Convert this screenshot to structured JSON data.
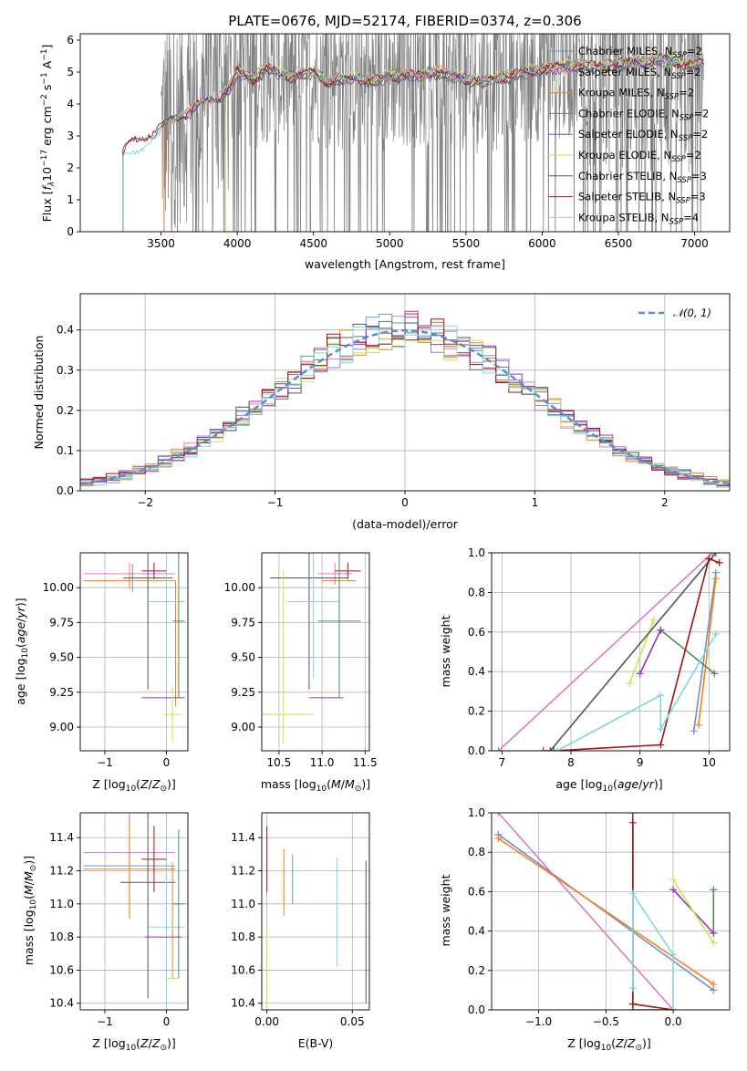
{
  "colors": {
    "chab_miles": "#6a8fd6",
    "salp_miles": "#e377c2",
    "krou_miles": "#ff7f0e",
    "chab_elodie": "#4f8a5a",
    "salp_elodie": "#9a32c4",
    "krou_elodie": "#c8e64a",
    "chab_stelib": "#555555",
    "salp_stelib": "#a50f15",
    "krou_stelib": "#7fd6e0",
    "data": "#808080",
    "gauss": "#5b8bd8"
  },
  "chart_data": [
    {
      "id": "spectrum",
      "type": "line",
      "title": "PLATE=0676, MJD=52174, FIBERID=0374, z=0.306",
      "xlabel": "wavelength [Angstrom, rest frame]",
      "ylabel": "Flux [$f_\\lambda 10^{-17}$ erg cm$^{-2}$ s$^{-1}$ A$^{-1}$]",
      "xlim": [
        2970,
        7230
      ],
      "ylim": [
        0,
        6.2
      ],
      "xticks": [
        3500,
        4000,
        4500,
        5000,
        5500,
        6000,
        6500,
        7000
      ],
      "yticks": [
        0,
        1,
        2,
        3,
        4,
        5,
        6
      ],
      "grid": false,
      "legend_position": "top-right",
      "legend": [
        {
          "key": "chab_miles",
          "name": "Chabrier MILES, N",
          "sub": "SSP",
          "tail": "=2"
        },
        {
          "key": "salp_miles",
          "name": "Salpeter MILES, N",
          "sub": "SSP",
          "tail": "=2"
        },
        {
          "key": "krou_miles",
          "name": "Kroupa MILES, N",
          "sub": "SSP",
          "tail": "=2"
        },
        {
          "key": "chab_elodie",
          "name": "Chabrier ELODIE, N",
          "sub": "SSP",
          "tail": "=2"
        },
        {
          "key": "salp_elodie",
          "name": "Salpeter ELODIE, N",
          "sub": "SSP",
          "tail": "=2"
        },
        {
          "key": "krou_elodie",
          "name": "Kroupa ELODIE, N",
          "sub": "SSP",
          "tail": "=2"
        },
        {
          "key": "chab_stelib",
          "name": "Chabrier STELIB, N",
          "sub": "SSP",
          "tail": "=3"
        },
        {
          "key": "salp_stelib",
          "name": "Salpeter STELIB, N",
          "sub": "SSP",
          "tail": "=3"
        },
        {
          "key": "krou_stelib",
          "name": "Kroupa STELIB, N",
          "sub": "SSP",
          "tail": "=4"
        }
      ],
      "model_envelope": {
        "x": [
          3250,
          3300,
          3400,
          3500,
          3600,
          3700,
          3800,
          3900,
          3950,
          4000,
          4100,
          4200,
          4300,
          4400,
          4500,
          4600,
          4700,
          4800,
          4900,
          5000,
          5100,
          5200,
          5300,
          5400,
          5500,
          5600,
          5700,
          5800,
          5900,
          6000,
          6200,
          6400,
          6600,
          6800,
          7000,
          7050
        ],
        "y": [
          2.6,
          2.8,
          3.0,
          3.3,
          3.6,
          3.8,
          4.1,
          4.3,
          4.5,
          5.0,
          4.8,
          5.1,
          4.9,
          4.9,
          5.0,
          4.7,
          4.8,
          4.8,
          4.7,
          4.9,
          4.9,
          4.9,
          5.0,
          4.9,
          4.8,
          4.7,
          4.8,
          4.9,
          5.0,
          5.1,
          5.2,
          5.2,
          5.3,
          5.4,
          5.2,
          5.3
        ]
      }
    },
    {
      "id": "residuals",
      "type": "line",
      "xlabel": "(data-model)/error",
      "ylabel": "Normed distribution",
      "xlim": [
        -2.5,
        2.5
      ],
      "ylim": [
        0,
        0.49
      ],
      "xticks": [
        -2,
        -1,
        0,
        1,
        2
      ],
      "yticks": [
        0.0,
        0.1,
        0.2,
        0.3,
        0.4
      ],
      "grid": true,
      "legend_position": "top-right",
      "legend": [
        {
          "key": "gauss",
          "name": "$\\mathcal{N}(0,1)$"
        }
      ],
      "bin_width": 0.1
    },
    {
      "id": "age_vs_Z",
      "type": "scatter",
      "xlabel": "Z [log$_{10}$(Z/Z$_\\odot$)]",
      "ylabel": "age  [log$_{10}$(age/yr)]",
      "xlim": [
        -1.4,
        0.35
      ],
      "ylim": [
        8.83,
        10.25
      ],
      "xticks": [
        -1,
        0
      ],
      "yticks": [
        9.0,
        9.25,
        9.5,
        9.75,
        10.0
      ],
      "grid": true
    },
    {
      "id": "age_vs_mass",
      "type": "scatter",
      "xlabel": "mass [log$_{10}$(M/M$_\\odot$)]",
      "xlim": [
        10.3,
        11.55
      ],
      "ylim": [
        8.83,
        10.25
      ],
      "xticks": [
        10.5,
        11.0,
        11.5
      ],
      "yticks": [
        9.0,
        9.25,
        9.5,
        9.75,
        10.0
      ],
      "grid": true
    },
    {
      "id": "weight_vs_age",
      "type": "line",
      "xlabel": "age  [log$_{10}$(age/yr)]",
      "ylabel": "mass weight",
      "xlim": [
        6.85,
        10.3
      ],
      "ylim": [
        0,
        1
      ],
      "xticks": [
        7,
        8,
        9,
        10
      ],
      "yticks": [
        0.0,
        0.2,
        0.4,
        0.6,
        0.8,
        1.0
      ],
      "grid": true,
      "series": [
        {
          "key": "chab_miles",
          "x": [
            9.78,
            10.1
          ],
          "y": [
            0.1,
            0.9
          ]
        },
        {
          "key": "salp_miles",
          "x": [
            6.95,
            10.05
          ],
          "y": [
            0.0,
            1.0
          ]
        },
        {
          "key": "krou_miles",
          "x": [
            9.85,
            10.1
          ],
          "y": [
            0.13,
            0.87
          ]
        },
        {
          "key": "chab_elodie",
          "x": [
            9.3,
            10.08
          ],
          "y": [
            0.61,
            0.39
          ]
        },
        {
          "key": "salp_elodie",
          "x": [
            9.0,
            9.3
          ],
          "y": [
            0.39,
            0.61
          ]
        },
        {
          "key": "krou_elodie",
          "x": [
            8.85,
            9.2
          ],
          "y": [
            0.34,
            0.66
          ]
        },
        {
          "key": "chab_stelib",
          "x": [
            7.6,
            7.7,
            10.1
          ],
          "y": [
            0.0,
            0.0,
            1.0
          ]
        },
        {
          "key": "salp_stelib",
          "x": [
            7.75,
            9.3,
            10.0,
            10.15
          ],
          "y": [
            0.0,
            0.03,
            0.97,
            0.95
          ]
        },
        {
          "key": "krou_stelib",
          "x": [
            7.8,
            9.3,
            9.3,
            10.1
          ],
          "y": [
            0.0,
            0.28,
            0.11,
            0.59
          ]
        }
      ]
    },
    {
      "id": "mass_vs_Z",
      "type": "scatter",
      "xlabel": "Z [log$_{10}$(Z/Z$_\\odot$)]",
      "ylabel": "mass [log$_{10}$(M/M$_\\odot$)]",
      "xlim": [
        -1.4,
        0.35
      ],
      "ylim": [
        10.36,
        11.55
      ],
      "xticks": [
        -1,
        0
      ],
      "yticks": [
        10.4,
        10.6,
        10.8,
        11.0,
        11.2,
        11.4
      ],
      "grid": true
    },
    {
      "id": "mass_vs_ebv",
      "type": "scatter",
      "xlabel": "E(B-V)",
      "xlim": [
        -0.003,
        0.06
      ],
      "ylim": [
        10.36,
        11.55
      ],
      "xticks": [
        0.0,
        0.05
      ],
      "yticks": [
        10.4,
        10.6,
        10.8,
        11.0,
        11.2,
        11.4
      ],
      "grid": true
    },
    {
      "id": "weight_vs_Z",
      "type": "line",
      "xlabel": "Z [log$_{10}$(Z/Z$_\\odot$)]",
      "ylabel": "mass weight",
      "xlim": [
        -1.35,
        0.42
      ],
      "ylim": [
        0,
        1
      ],
      "xticks": [
        -1.0,
        -0.5,
        0.0
      ],
      "yticks": [
        0.0,
        0.2,
        0.4,
        0.6,
        0.8,
        1.0
      ],
      "grid": true,
      "series": [
        {
          "key": "chab_miles",
          "x": [
            -1.3,
            0.3
          ],
          "y": [
            0.89,
            0.1
          ]
        },
        {
          "key": "salp_miles",
          "x": [
            -1.3,
            0.0
          ],
          "y": [
            1.0,
            0.0
          ]
        },
        {
          "key": "krou_miles",
          "x": [
            -1.3,
            0.3
          ],
          "y": [
            0.87,
            0.13
          ]
        },
        {
          "key": "chab_elodie",
          "x": [
            0.3,
            0.3
          ],
          "y": [
            0.39,
            0.61
          ]
        },
        {
          "key": "salp_elodie",
          "x": [
            0.0,
            0.3
          ],
          "y": [
            0.61,
            0.39
          ]
        },
        {
          "key": "krou_elodie",
          "x": [
            0.0,
            0.3
          ],
          "y": [
            0.66,
            0.34
          ]
        },
        {
          "key": "chab_stelib",
          "x": [
            -0.3,
            -0.3,
            0.0
          ],
          "y": [
            1.0,
            0.0,
            0.0
          ]
        },
        {
          "key": "salp_stelib",
          "x": [
            -0.3,
            -0.3,
            0.0
          ],
          "y": [
            0.95,
            0.03,
            0.0
          ]
        },
        {
          "key": "krou_stelib",
          "x": [
            -0.3,
            -0.3,
            0.0,
            0.0
          ],
          "y": [
            0.11,
            0.59,
            0.28,
            0.0
          ]
        }
      ]
    }
  ],
  "errorbars": {
    "age_vs_Z": [
      {
        "key": "salp_miles",
        "x": -0.6,
        "xerr": 0.75,
        "y": 10.1,
        "yerr": 0.08
      },
      {
        "key": "krou_miles",
        "x": -0.6,
        "xerr": 0.75,
        "y": 10.05,
        "yerr": 0.06
      },
      {
        "key": "chab_miles",
        "x": -0.55,
        "xerr": 0.0,
        "y": 10.07,
        "yerr": 0.1
      },
      {
        "key": "salp_stelib",
        "x": -0.2,
        "xerr": 0.2,
        "y": 10.12,
        "yerr": 0.06
      },
      {
        "key": "chab_stelib",
        "x": -0.3,
        "xerr": 0.4,
        "y": 10.07,
        "yerr": 0.8
      },
      {
        "key": "krou_miles",
        "x": 0.15,
        "xerr": 0.0,
        "y": 9.6,
        "yerr": 0.45
      },
      {
        "key": "krou_stelib",
        "x": 0.0,
        "xerr": 0.3,
        "y": 9.9,
        "yerr": 0.55
      },
      {
        "key": "chab_elodie",
        "x": 0.2,
        "xerr": 0.1,
        "y": 9.76,
        "yerr": 0.55
      },
      {
        "key": "salp_elodie",
        "x": -0.05,
        "xerr": 0.35,
        "y": 9.21,
        "yerr": 0.0
      },
      {
        "key": "krou_elodie",
        "x": 0.1,
        "xerr": 0.15,
        "y": 9.09,
        "yerr": 0.2
      }
    ],
    "age_vs_mass": [
      {
        "key": "salp_miles",
        "x": 11.15,
        "xerr": 0.2,
        "y": 10.1,
        "yerr": 0.08
      },
      {
        "key": "krou_miles",
        "x": 11.2,
        "xerr": 0.2,
        "y": 10.05,
        "yerr": 0.06
      },
      {
        "key": "chab_stelib",
        "x": 10.85,
        "xerr": 0.45,
        "y": 10.07,
        "yerr": 0.8
      },
      {
        "key": "salp_stelib",
        "x": 11.3,
        "xerr": 0.15,
        "y": 10.12,
        "yerr": 0.06
      },
      {
        "key": "krou_stelib",
        "x": 10.9,
        "xerr": 0.3,
        "y": 9.9,
        "yerr": 0.55
      },
      {
        "key": "chab_elodie",
        "x": 11.2,
        "xerr": 0.25,
        "y": 9.76,
        "yerr": 0.55
      },
      {
        "key": "krou_elodie",
        "x": 10.6,
        "xerr": 0.3,
        "y": 9.09,
        "yerr": 0.0
      },
      {
        "key": "krou_elodie",
        "x": 10.55,
        "xerr": 0.0,
        "y": 9.5,
        "yerr": 0.62
      },
      {
        "key": "salp_elodie",
        "x": 11.05,
        "xerr": 0.2,
        "y": 9.21,
        "yerr": 0.0
      }
    ],
    "mass_vs_Z": [
      {
        "key": "salp_miles",
        "x": -0.6,
        "xerr": 0.75,
        "y": 11.31,
        "yerr": 0.3
      },
      {
        "key": "chab_miles",
        "x": -0.6,
        "xerr": 0.75,
        "y": 11.23,
        "yerr": 0.3
      },
      {
        "key": "krou_miles",
        "x": -0.6,
        "xerr": 0.75,
        "y": 11.21,
        "yerr": 0.3
      },
      {
        "key": "salp_stelib",
        "x": -0.2,
        "xerr": 0.2,
        "y": 11.27,
        "yerr": 0.2
      },
      {
        "key": "chab_stelib",
        "x": -0.3,
        "xerr": 0.45,
        "y": 11.13,
        "yerr": 0.7
      },
      {
        "key": "krou_miles",
        "x": 0.1,
        "xerr": 0.0,
        "y": 10.9,
        "yerr": 0.35
      },
      {
        "key": "krou_stelib",
        "x": 0.0,
        "xerr": 0.3,
        "y": 10.86,
        "yerr": 0.5
      },
      {
        "key": "chab_elodie",
        "x": 0.2,
        "xerr": 0.1,
        "y": 11.0,
        "yerr": 0.45
      },
      {
        "key": "salp_elodie",
        "x": -0.05,
        "xerr": 0.3,
        "y": 10.8,
        "yerr": 0.0
      },
      {
        "key": "krou_elodie",
        "x": 0.1,
        "xerr": 0.1,
        "y": 10.55,
        "yerr": 0.0
      }
    ],
    "mass_vs_ebv": [
      {
        "key": "salp_stelib",
        "x": 0.0,
        "y": 11.27,
        "yerr": 0.2
      },
      {
        "key": "krou_miles",
        "x": 0.01,
        "y": 11.13,
        "yerr": 0.2
      },
      {
        "key": "chab_miles",
        "x": 0.015,
        "y": 11.15,
        "yerr": 0.15
      },
      {
        "key": "krou_stelib",
        "x": 0.041,
        "y": 10.95,
        "yerr": 0.33
      },
      {
        "key": "krou_elodie",
        "x": 0.0,
        "y": 10.6,
        "yerr": 0.25
      },
      {
        "key": "chab_stelib",
        "x": 0.058,
        "y": 10.83,
        "yerr": 0.43
      }
    ]
  }
}
